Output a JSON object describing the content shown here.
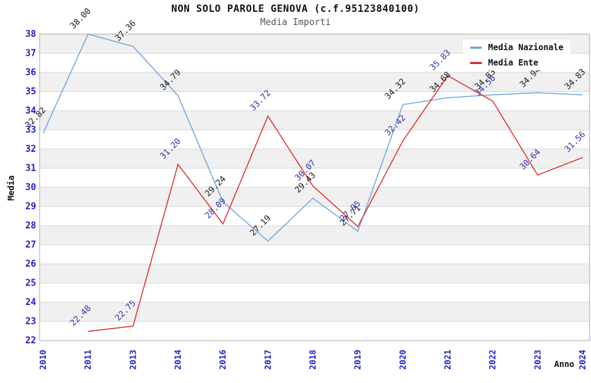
{
  "chart_data": {
    "type": "line",
    "title": "NON SOLO PAROLE GENOVA (c.f.95123840100)",
    "subtitle": "Media Importi",
    "xlabel": "Anno",
    "ylabel": "Media",
    "ylim": [
      22,
      38
    ],
    "y_tick_step": 1,
    "grid": "horizontal-bands-and-lines",
    "legend_position": "top-right",
    "categories": [
      "2010",
      "2011",
      "2013",
      "2014",
      "2016",
      "2017",
      "2018",
      "2019",
      "2020",
      "2021",
      "2022",
      "2023",
      "2024"
    ],
    "series": [
      {
        "name": "Media Nazionale",
        "color": "#6CA6DF",
        "label_color": "#1A1A1A",
        "values": [
          32.82,
          38.0,
          37.36,
          34.79,
          29.24,
          27.19,
          29.43,
          27.71,
          34.32,
          34.68,
          34.83,
          34.94,
          34.83
        ]
      },
      {
        "name": "Media Ente",
        "color": "#E02A2A",
        "label_color": "#3333AA",
        "values": [
          null,
          22.48,
          22.75,
          31.2,
          28.09,
          33.72,
          30.07,
          27.95,
          32.42,
          35.83,
          34.5,
          30.64,
          31.56
        ]
      }
    ],
    "colors": {
      "axis_tick_label": "#2222CC",
      "band_fill": "#F0F0F0",
      "gridline": "#D9D9D9",
      "plot_border": "#ADADAD",
      "title": "#111111",
      "subtitle": "#555555"
    }
  }
}
